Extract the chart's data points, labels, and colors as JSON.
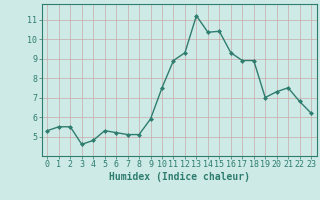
{
  "x": [
    0,
    1,
    2,
    3,
    4,
    5,
    6,
    7,
    8,
    9,
    10,
    11,
    12,
    13,
    14,
    15,
    16,
    17,
    18,
    19,
    20,
    21,
    22,
    23
  ],
  "y": [
    5.3,
    5.5,
    5.5,
    4.6,
    4.8,
    5.3,
    5.2,
    5.1,
    5.1,
    5.9,
    7.5,
    8.9,
    9.3,
    11.2,
    10.35,
    10.4,
    9.3,
    8.9,
    8.9,
    7.0,
    7.3,
    7.5,
    6.8,
    6.2
  ],
  "line_color": "#2e7d6e",
  "marker": "D",
  "markersize": 2.0,
  "linewidth": 1.0,
  "bg_color": "#ceeae7",
  "grid_color": "#c9a8a8",
  "xlabel": "Humidex (Indice chaleur)",
  "xlabel_fontsize": 7,
  "tick_fontsize": 6,
  "ylim": [
    4.0,
    11.8
  ],
  "yticks": [
    5,
    6,
    7,
    8,
    9,
    10,
    11
  ],
  "xticks": [
    0,
    1,
    2,
    3,
    4,
    5,
    6,
    7,
    8,
    9,
    10,
    11,
    12,
    13,
    14,
    15,
    16,
    17,
    18,
    19,
    20,
    21,
    22,
    23
  ],
  "xlim": [
    -0.5,
    23.5
  ]
}
